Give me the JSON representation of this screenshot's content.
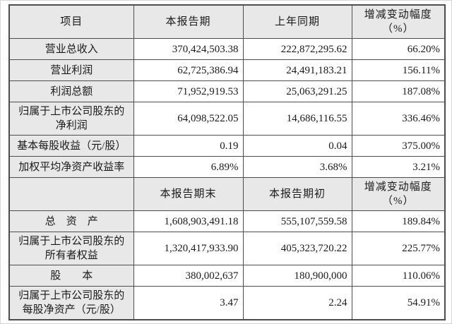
{
  "page": {
    "type": "financial-report-key-figures-table",
    "background": "#ffffff"
  },
  "table": {
    "colors": {
      "border": "#4d4d4d",
      "shaded_background": "#e8e8e8",
      "cell_background": "#ffffff",
      "text": "#1a1a1a",
      "page_border": "#d6d6d6"
    },
    "sections": [
      {
        "header": {
          "item": "项目",
          "c2": "本报告期",
          "c3": "上年同期",
          "c4": "增减变动幅度\n（%）"
        },
        "rows": [
          {
            "label": "营业总收入",
            "v1": "370,424,503.38",
            "v2": "222,872,295.62",
            "pct": "66.20%"
          },
          {
            "label": "营业利润",
            "v1": "62,725,386.94",
            "v2": "24,491,183.21",
            "pct": "156.11%"
          },
          {
            "label": "利润总额",
            "v1": "71,952,919.53",
            "v2": "25,063,291.25",
            "pct": "187.08%"
          },
          {
            "label": "归属于上市公司股东的净利润",
            "v1": "64,098,522.05",
            "v2": "14,686,116.55",
            "pct": "336.46%"
          },
          {
            "label": "基本每股收益（元/股）",
            "v1": "0.19",
            "v2": "0.04",
            "pct": "375.00%"
          },
          {
            "label": "加权平均净资产收益率",
            "v1": "6.89%",
            "v2": "3.68%",
            "pct": "3.21%"
          }
        ]
      },
      {
        "header": {
          "item": "",
          "c2": "本报告期末",
          "c3": "本报告期初",
          "c4": "增减变动幅度\n（%）"
        },
        "rows": [
          {
            "label": "总　资　产",
            "v1": "1,608,903,491.18",
            "v2": "555,107,559.58",
            "pct": "189.84%"
          },
          {
            "label": "归属于上市公司股东的所有者权益",
            "v1": "1,320,417,933.90",
            "v2": "405,323,720.22",
            "pct": "225.77%"
          },
          {
            "label": "股　　本",
            "v1": "380,002,637",
            "v2": "180,900,000",
            "pct": "110.06%"
          },
          {
            "label": "归属于上市公司股东的每股净资产（元/股）",
            "v1": "3.47",
            "v2": "2.24",
            "pct": "54.91%"
          }
        ]
      }
    ]
  }
}
